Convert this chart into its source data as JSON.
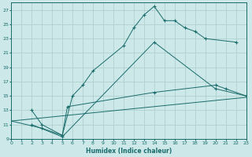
{
  "xlabel": "Humidex (Indice chaleur)",
  "bg_color": "#cce8e8",
  "grid_color": "#b0d0d0",
  "line_color": "#1a6b6b",
  "xlim": [
    0,
    23
  ],
  "ylim": [
    9,
    28
  ],
  "xticks": [
    0,
    1,
    2,
    3,
    4,
    5,
    6,
    7,
    8,
    9,
    10,
    11,
    12,
    13,
    14,
    15,
    16,
    17,
    18,
    19,
    20,
    21,
    22,
    23
  ],
  "yticks": [
    9,
    11,
    13,
    15,
    17,
    19,
    21,
    23,
    25,
    27
  ],
  "line1_x": [
    2,
    3,
    5,
    6,
    7,
    8,
    11,
    12,
    13,
    14,
    15,
    16,
    17,
    18,
    19,
    22
  ],
  "line1_y": [
    13,
    11,
    9.5,
    15,
    16.5,
    18.5,
    22,
    24.5,
    26.3,
    27.5,
    25.5,
    25.5,
    24.5,
    24.0,
    23.0,
    22.5
  ],
  "line2_x": [
    2,
    5,
    14,
    20,
    23
  ],
  "line2_y": [
    11,
    9.3,
    22.5,
    16.0,
    15.0
  ],
  "line3_x": [
    0,
    23
  ],
  "line3_y": [
    11.5,
    14.8
  ],
  "line4_x": [
    0,
    3,
    5,
    5.5,
    14,
    20,
    21,
    23
  ],
  "line4_y": [
    11.5,
    10.5,
    9.5,
    13.5,
    15.5,
    16.5,
    16.0,
    15.0
  ]
}
